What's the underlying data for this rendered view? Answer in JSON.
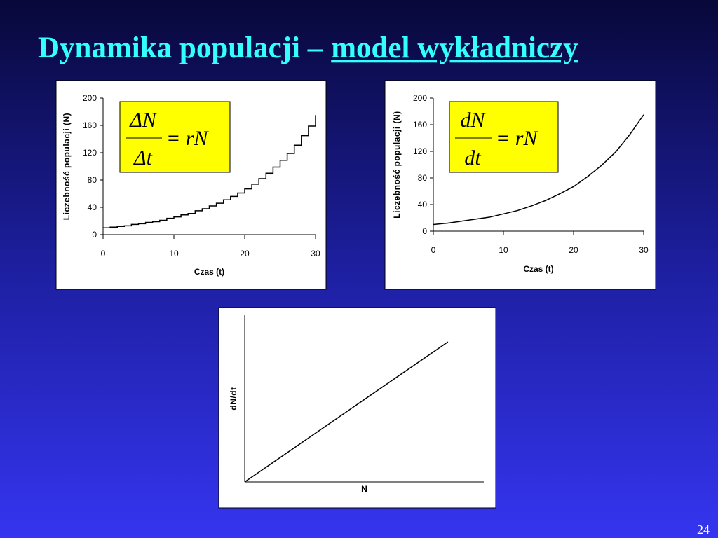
{
  "slide": {
    "title": "Dynamika populacji –",
    "title_underlined": "model wykładniczy",
    "page_number": "24"
  },
  "chart_data": [
    {
      "type": "step",
      "xlabel": "Czas (t)",
      "ylabel": "Liczebność populacji (N)",
      "formula": {
        "numerator": "ΔN",
        "denominator": "Δt",
        "rhs": "= rN"
      },
      "x": [
        0,
        1,
        2,
        3,
        4,
        5,
        6,
        7,
        8,
        9,
        10,
        11,
        12,
        13,
        14,
        15,
        16,
        17,
        18,
        19,
        20,
        21,
        22,
        23,
        24,
        25,
        26,
        27,
        28,
        29,
        30
      ],
      "series": [
        {
          "color": "#000000",
          "values": [
            10,
            11,
            12,
            13,
            15,
            16,
            18,
            19,
            21,
            24,
            26,
            29,
            31,
            35,
            38,
            42,
            46,
            51,
            56,
            61,
            67,
            74,
            82,
            90,
            99,
            109,
            119,
            131,
            145,
            159,
            175
          ]
        }
      ],
      "xlim": [
        0,
        30
      ],
      "xticks": [
        0,
        10,
        20,
        30
      ],
      "ylim": [
        0,
        200
      ],
      "yticks": [
        0,
        40,
        80,
        120,
        160,
        200
      ]
    },
    {
      "type": "line",
      "xlabel": "Czas (t)",
      "ylabel": "Liczebność populacji (N)",
      "formula": {
        "numerator": "dN",
        "denominator": "dt",
        "rhs": "= rN"
      },
      "x": [
        0,
        2,
        4,
        6,
        8,
        10,
        12,
        14,
        16,
        18,
        20,
        22,
        24,
        26,
        28,
        30
      ],
      "series": [
        {
          "color": "#000000",
          "values": [
            10,
            12,
            15,
            18,
            21,
            26,
            31,
            38,
            46,
            56,
            67,
            82,
            99,
            119,
            145,
            175
          ]
        }
      ],
      "xlim": [
        0,
        30
      ],
      "xticks": [
        0,
        10,
        20,
        30
      ],
      "ylim": [
        0,
        200
      ],
      "yticks": [
        0,
        40,
        80,
        120,
        160,
        200
      ]
    },
    {
      "type": "line",
      "xlabel": "N",
      "ylabel": "dN/dt",
      "x": [
        0,
        0.85
      ],
      "series": [
        {
          "color": "#000000",
          "values": [
            0,
            0.84
          ]
        }
      ],
      "xlim": [
        0,
        1
      ],
      "ylim": [
        0,
        1
      ]
    }
  ]
}
